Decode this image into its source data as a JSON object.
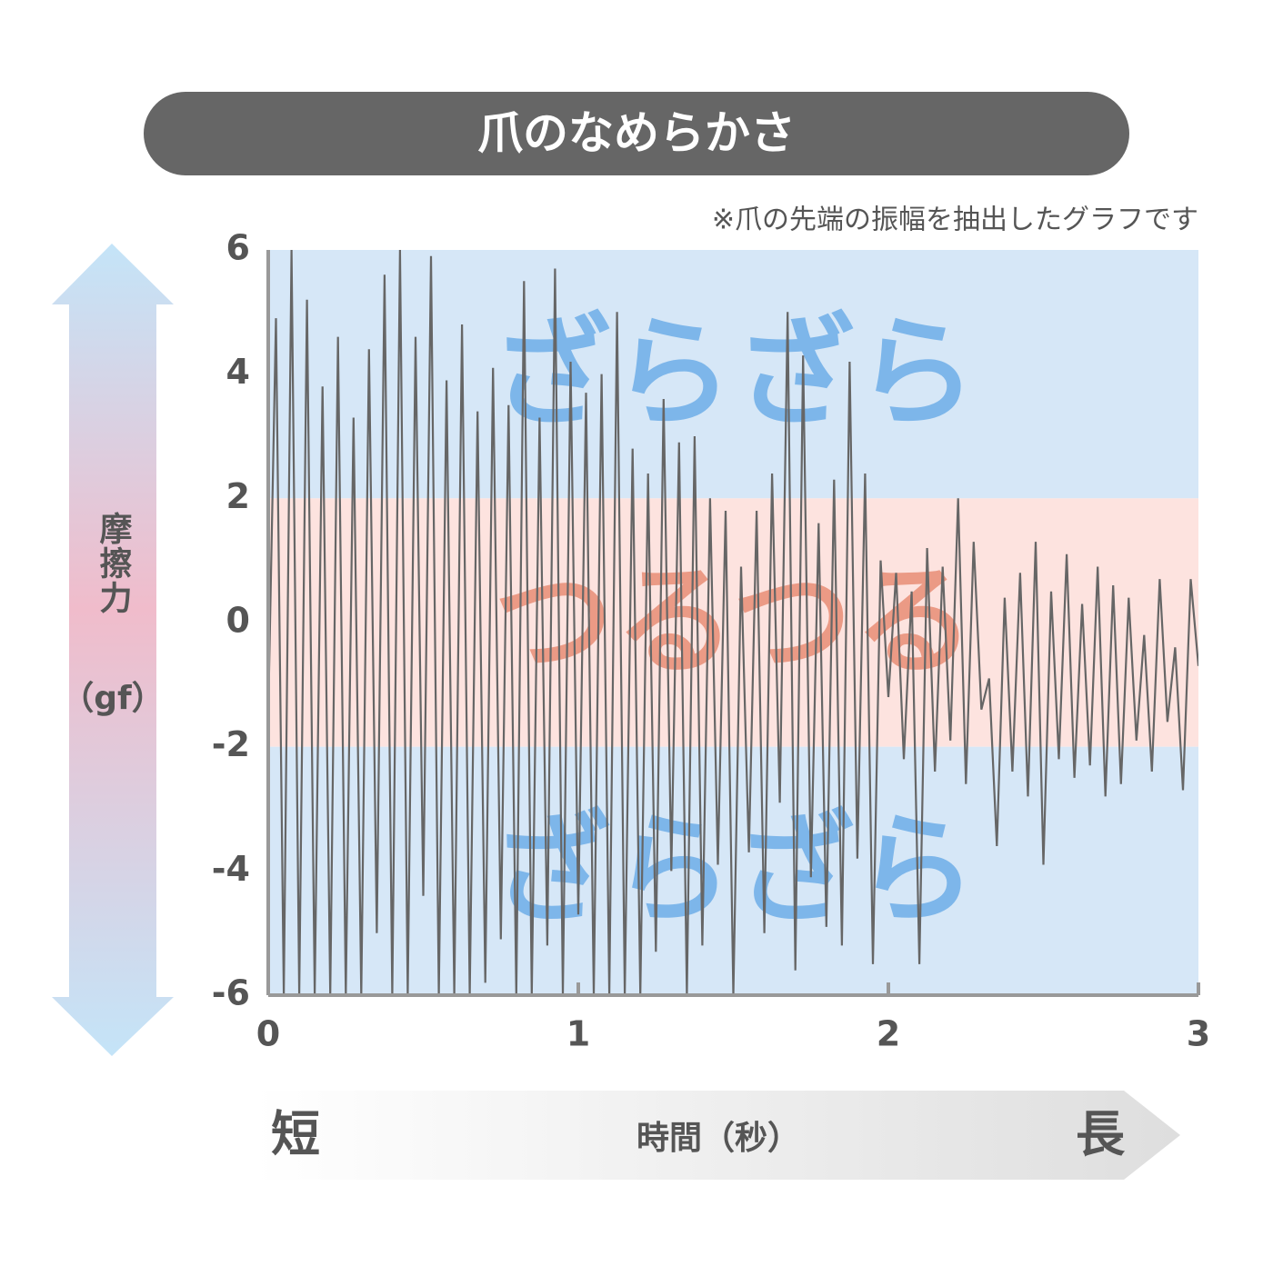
{
  "chart_data": {
    "type": "line",
    "title": "爪のなめらかさ",
    "note": "※爪の先端の振幅を抽出したグラフです",
    "ylabel": [
      "摩擦力",
      "（gf）"
    ],
    "xlabel": "時間（秒）",
    "short_label": "短",
    "long_label": "長",
    "bands": [
      {
        "from": 2,
        "to": 6,
        "label": "ざらざら",
        "color": "#d6e7f7",
        "text_color": "#7db6ea"
      },
      {
        "from": -2,
        "to": 2,
        "label": "つるつる",
        "color": "#fde3df",
        "text_color": "#eb9a85"
      },
      {
        "from": -6,
        "to": -2,
        "label": "ざらざら",
        "color": "#d6e7f7",
        "text_color": "#7db6ea"
      }
    ],
    "xlim": [
      0,
      3
    ],
    "xticks": [
      0,
      1,
      2,
      3
    ],
    "ylim": [
      -6,
      6
    ],
    "yticks": [
      -6,
      -4,
      -2,
      0,
      2,
      4,
      6
    ],
    "series": [
      {
        "color": "#666666",
        "x": [
          0,
          0.025,
          0.05,
          0.075,
          0.1,
          0.125,
          0.15,
          0.175,
          0.2,
          0.225,
          0.25,
          0.275,
          0.3,
          0.325,
          0.35,
          0.375,
          0.4,
          0.425,
          0.45,
          0.475,
          0.5,
          0.525,
          0.55,
          0.575,
          0.6,
          0.625,
          0.65,
          0.675,
          0.7,
          0.725,
          0.75,
          0.775,
          0.8,
          0.825,
          0.85,
          0.875,
          0.9,
          0.925,
          0.95,
          0.975,
          1,
          1.025,
          1.05,
          1.075,
          1.1,
          1.125,
          1.15,
          1.175,
          1.2,
          1.225,
          1.25,
          1.275,
          1.3,
          1.325,
          1.35,
          1.375,
          1.4,
          1.425,
          1.45,
          1.475,
          1.5,
          1.525,
          1.55,
          1.575,
          1.6,
          1.625,
          1.65,
          1.675,
          1.7,
          1.725,
          1.75,
          1.775,
          1.8,
          1.825,
          1.85,
          1.875,
          1.9,
          1.925,
          1.95,
          1.975,
          2,
          2.025,
          2.05,
          2.075,
          2.1,
          2.125,
          2.15,
          2.175,
          2.2,
          2.225,
          2.25,
          2.275,
          2.3,
          2.325,
          2.35,
          2.375,
          2.4,
          2.425,
          2.45,
          2.475,
          2.5,
          2.525,
          2.55,
          2.575,
          2.6,
          2.625,
          2.65,
          2.675,
          2.7,
          2.725,
          2.75,
          2.775,
          2.8,
          2.825,
          2.85,
          2.875,
          2.9,
          2.925,
          2.95,
          2.975,
          3
        ],
        "values": [
          -1.5,
          4.9,
          -6,
          6,
          -6,
          5.2,
          -6,
          3.8,
          -6,
          4.6,
          -6,
          3.3,
          -6,
          4.4,
          -5,
          5.6,
          -6,
          6,
          -6,
          4.6,
          -4.4,
          5.9,
          -6,
          3.9,
          -6,
          4.8,
          -6,
          3.4,
          -5.8,
          4.1,
          -5.1,
          3.5,
          -6,
          5.5,
          -6,
          3.3,
          -5.2,
          5.7,
          -6,
          4.2,
          -4.7,
          3.7,
          -6,
          4,
          -6,
          5,
          -6,
          2.8,
          -6,
          2.4,
          -5.3,
          3.6,
          -4,
          2.9,
          -6,
          3,
          -5.2,
          2,
          -3.9,
          1.8,
          -6,
          0.9,
          -3.7,
          1.8,
          -5,
          2.4,
          -2.9,
          5,
          -5.6,
          4.3,
          -4.1,
          1.6,
          -4.9,
          2.3,
          -5.2,
          4.2,
          -3.8,
          2.4,
          -5.5,
          1,
          -1.2,
          0.8,
          -2.2,
          0.5,
          -5.5,
          1.2,
          -2.4,
          0.9,
          -1.9,
          2,
          -2.6,
          1.3,
          -1.4,
          -0.9,
          -3.6,
          0.4,
          -2.4,
          0.8,
          -2.8,
          1.3,
          -3.9,
          0.5,
          -2.2,
          1.1,
          -2.5,
          0.3,
          -2.3,
          0.9,
          -2.8,
          0.6,
          -2.6,
          0.4,
          -1.9,
          -0.2,
          -2.4,
          0.7,
          -1.6,
          -0.4,
          -2.7,
          0.7,
          -0.7
        ]
      }
    ]
  }
}
